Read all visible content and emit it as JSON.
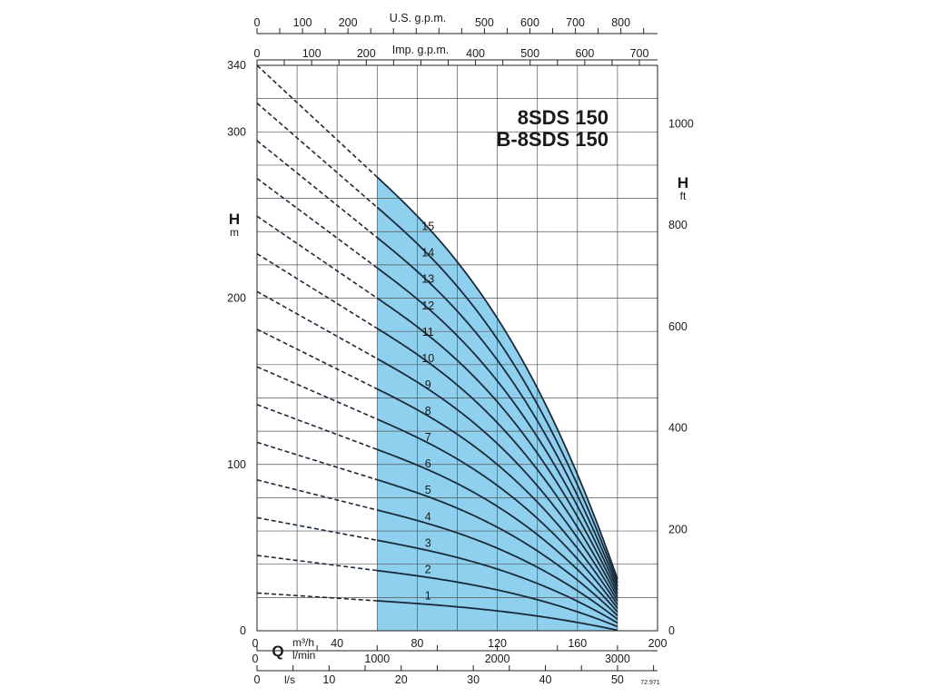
{
  "chart_data": {
    "type": "line",
    "title": "8SDS 150",
    "subtitle": "B-8SDS 150",
    "xlabel": "Q",
    "ylabel": "H",
    "ylabel_unit": "m",
    "y2label": "H",
    "y2label_unit": "ft",
    "xlim": [
      0,
      200
    ],
    "ylim": [
      0,
      340
    ],
    "grid": true,
    "legend": "none",
    "shaded_region_x": [
      60,
      180
    ],
    "shade_color": "#8ed0ee",
    "curve_color": "#1b2a3a",
    "axes": {
      "x_m3h": {
        "unit": "m³/h",
        "ticks": [
          "0",
          "40",
          "80",
          "120",
          "160",
          "200"
        ]
      },
      "x_lmin": {
        "unit": "l/min",
        "ticks": [
          "0",
          "1000",
          "2000",
          "3000"
        ]
      },
      "x_ls": {
        "unit": "l/s",
        "ticks": [
          "0",
          "10",
          "20",
          "30",
          "40",
          "50"
        ]
      },
      "top_usgpm": {
        "unit": "U.S. g.p.m.",
        "ticks": [
          "0",
          "100",
          "200",
          "500",
          "600",
          "700",
          "800"
        ]
      },
      "top_impgpm": {
        "unit": "Imp. g.p.m.",
        "ticks": [
          "0",
          "100",
          "200",
          "400",
          "500",
          "600",
          "700"
        ]
      },
      "y_m": {
        "ticks": [
          "0",
          "100",
          "200",
          "300",
          "340"
        ]
      },
      "y_ft": {
        "ticks": [
          "0",
          "200",
          "400",
          "600",
          "800",
          "1000"
        ]
      }
    },
    "series": [
      {
        "name": "1",
        "shutoff": 22.7,
        "at60": 18.0,
        "at180": 0.3
      },
      {
        "name": "2",
        "shutoff": 45.3,
        "at60": 36.2,
        "at180": 2.5
      },
      {
        "name": "3",
        "shutoff": 68.0,
        "at60": 54.4,
        "at180": 4.7
      },
      {
        "name": "4",
        "shutoff": 90.7,
        "at60": 72.6,
        "at180": 6.9
      },
      {
        "name": "5",
        "shutoff": 113.3,
        "at60": 90.8,
        "at180": 9.1
      },
      {
        "name": "6",
        "shutoff": 136.0,
        "at60": 109.0,
        "at180": 11.3
      },
      {
        "name": "7",
        "shutoff": 158.7,
        "at60": 127.2,
        "at180": 13.5
      },
      {
        "name": "8",
        "shutoff": 181.3,
        "at60": 145.4,
        "at180": 15.7
      },
      {
        "name": "9",
        "shutoff": 204.0,
        "at60": 163.6,
        "at180": 17.9
      },
      {
        "name": "10",
        "shutoff": 226.7,
        "at60": 181.8,
        "at180": 20.1
      },
      {
        "name": "11",
        "shutoff": 249.3,
        "at60": 200.0,
        "at180": 22.3
      },
      {
        "name": "12",
        "shutoff": 272.0,
        "at60": 218.2,
        "at180": 24.5
      },
      {
        "name": "13",
        "shutoff": 294.7,
        "at60": 236.4,
        "at180": 26.7
      },
      {
        "name": "14",
        "shutoff": 317.3,
        "at60": 254.6,
        "at180": 28.9
      },
      {
        "name": "15",
        "shutoff": 340.0,
        "at60": 272.8,
        "at180": 31.1
      }
    ],
    "footnote": "72.971"
  }
}
